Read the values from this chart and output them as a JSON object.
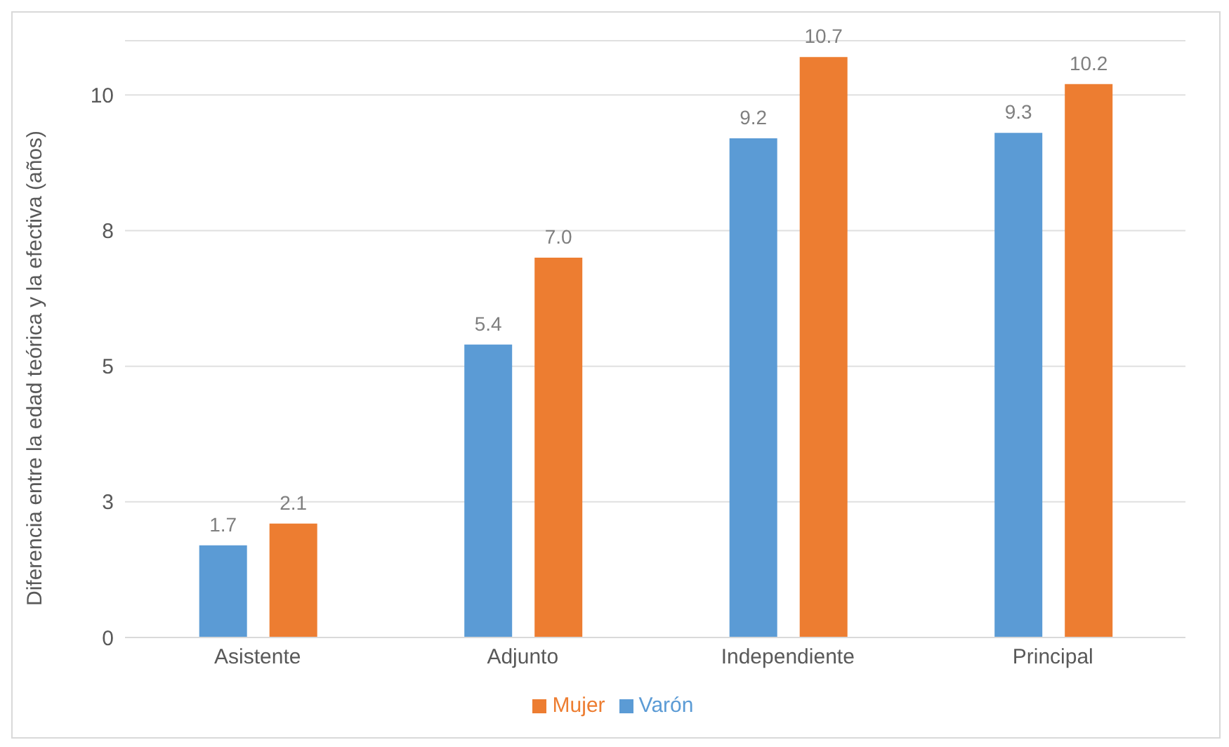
{
  "chart_data": {
    "type": "bar",
    "ylabel": "Diferencia entre la edad teórica y la efectiva (años)",
    "categories": [
      "Asistente",
      "Adjunto",
      "Independiente",
      "Principal"
    ],
    "series": [
      {
        "name": "Varón",
        "color": "#5b9bd5",
        "values": [
          1.7,
          5.4,
          9.2,
          9.3
        ],
        "value_labels": [
          "1.7",
          "5.4",
          "9.2",
          "9.3"
        ]
      },
      {
        "name": "Mujer",
        "color": "#ed7d31",
        "values": [
          2.1,
          7.0,
          10.7,
          10.2
        ],
        "value_labels": [
          "2.1",
          "7.0",
          "10.7",
          "10.2"
        ]
      }
    ],
    "ylim": [
      0,
      11
    ],
    "yticks": [
      0,
      {
        "value": 2.5,
        "label": "3"
      },
      5,
      {
        "value": 7.5,
        "label": "8"
      },
      10
    ],
    "grid": "y",
    "legend": "bottom"
  }
}
